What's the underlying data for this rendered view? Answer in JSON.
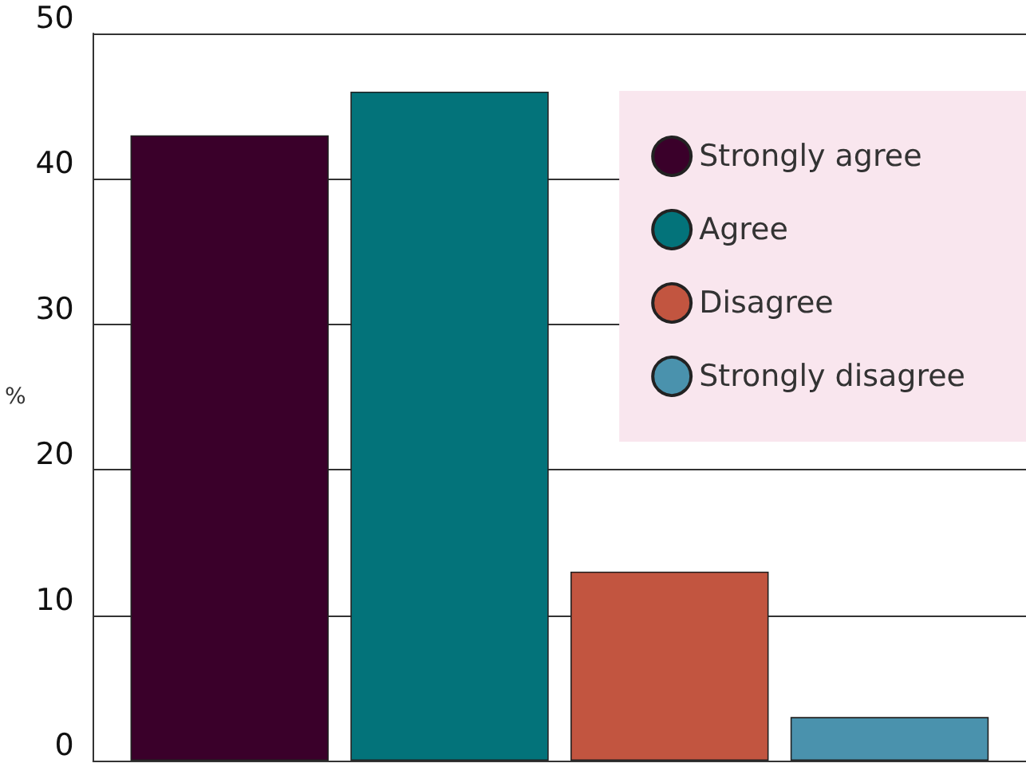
{
  "chart_data": {
    "type": "bar",
    "ylabel": "%",
    "categories": [
      null
    ],
    "series": [
      {
        "name": "Strongly agree",
        "color": "#3a002a",
        "values": [
          43
        ]
      },
      {
        "name": "Agree",
        "color": "#03737a",
        "values": [
          46
        ]
      },
      {
        "name": "Disagree",
        "color": "#c25540",
        "values": [
          13
        ]
      },
      {
        "name": "Strongly disagree",
        "color": "#4a92ad",
        "values": [
          3
        ]
      }
    ],
    "ylim": [
      0,
      50
    ],
    "yticks": [
      0,
      10,
      20,
      30,
      40,
      50
    ],
    "grid": "y",
    "legend": "top right"
  }
}
